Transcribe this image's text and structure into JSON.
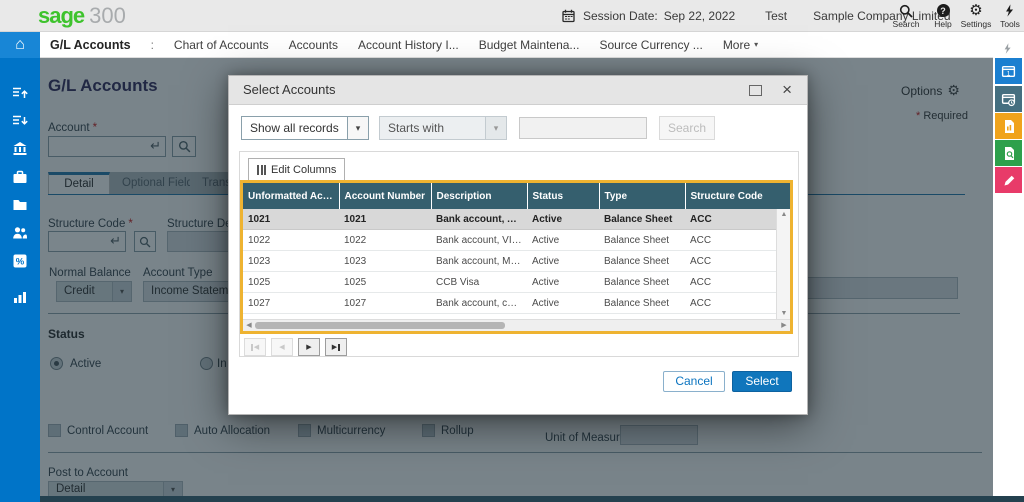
{
  "chrome": {
    "logo": {
      "sage": "sage",
      "product": "300"
    },
    "session": {
      "label": "Session Date:",
      "date": "Sep 22, 2022",
      "user": "Test",
      "company": "Sample Company Limited"
    },
    "top_icons": [
      {
        "name": "search",
        "label": "Search"
      },
      {
        "name": "help",
        "label": "Help"
      },
      {
        "name": "settings",
        "label": "Settings"
      },
      {
        "name": "tools",
        "label": "Tools"
      }
    ],
    "breadcrumb": {
      "current": "G/L Accounts",
      "separator": ":",
      "items": [
        "Chart of Accounts",
        "Accounts",
        "Account History I...",
        "Budget Maintena...",
        "Source Currency ...",
        "More"
      ]
    }
  },
  "page": {
    "title": "G/L Accounts",
    "options_label": "Options",
    "required_mark": "*",
    "required_note": "Required",
    "account_label": "Account",
    "tabs": [
      "Detail",
      "Optional Fields",
      "Transact"
    ],
    "structure_code_label": "Structure Code",
    "structure_desc_label": "Structure Des",
    "normal_balance": {
      "label": "Normal Balance",
      "value": "Credit"
    },
    "account_type": {
      "label": "Account Type",
      "value": "Income Statement"
    },
    "status": {
      "label": "Status",
      "active_label": "Active",
      "inactive_label": "In"
    },
    "checkboxes": [
      "Control Account",
      "Auto Allocation",
      "Multicurrency",
      "Rollup"
    ],
    "unit_of_measure_label": "Unit of Measure",
    "post_to_account": {
      "label": "Post to Account",
      "value": "Detail"
    }
  },
  "modal": {
    "title": "Select Accounts",
    "filter": {
      "show_records": "Show all records",
      "match_type": "Starts with",
      "search_value": "",
      "search_button": "Search"
    },
    "edit_columns_label": "Edit Columns",
    "table": {
      "columns": [
        "Unformatted Acco...",
        "Account Number",
        "Description",
        "Status",
        "Type",
        "Structure Code"
      ],
      "rows": [
        [
          "1021",
          "1021",
          "Bank account, Am...",
          "Active",
          "Balance Sheet",
          "ACC"
        ],
        [
          "1022",
          "1022",
          "Bank account, VISA",
          "Active",
          "Balance Sheet",
          "ACC"
        ],
        [
          "1023",
          "1023",
          "Bank account, Mast...",
          "Active",
          "Balance Sheet",
          "ACC"
        ],
        [
          "1025",
          "1025",
          "CCB Visa",
          "Active",
          "Balance Sheet",
          "ACC"
        ],
        [
          "1027",
          "1027",
          "Bank account, corp...",
          "Active",
          "Balance Sheet",
          "ACC"
        ]
      ],
      "selected_row": 0
    },
    "footer": {
      "cancel_label": "Cancel",
      "select_label": "Select"
    }
  },
  "colors": {
    "sage_green": "#3ec32d",
    "sidebar_blue": "#0074c8",
    "grid_header_teal": "#355f6e",
    "focus_border_orange": "#eeb331",
    "select_button_blue": "#1076bc"
  }
}
